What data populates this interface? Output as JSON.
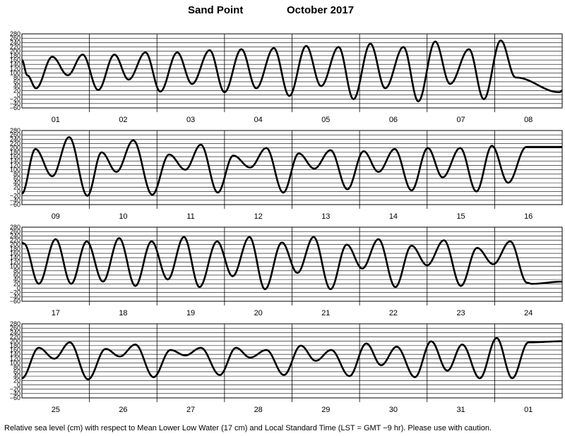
{
  "title": {
    "station": "Sand Point",
    "month_year": "October   2017"
  },
  "footer": "Relative sea level (cm) with respect to Mean Lower Low Water (17 cm) and Local Standard Time (LST = GMT −9 hr). Please use with caution.",
  "chart_data": {
    "type": "line",
    "ylim": [
      -60,
      280
    ],
    "y_ticks": [
      -60,
      -40,
      -20,
      0,
      20,
      40,
      60,
      80,
      100,
      120,
      140,
      160,
      180,
      200,
      220,
      240,
      260,
      280
    ],
    "y_tick_labels": [
      "−60",
      "−40",
      "−20",
      "0",
      "20",
      "40",
      "60",
      "80",
      "100",
      "120",
      "140",
      "160",
      "180",
      "200",
      "220",
      "240",
      "260",
      "280"
    ],
    "grid": true,
    "ylabel": "Relative sea level (cm)",
    "panels": [
      {
        "days": [
          "01",
          "02",
          "03",
          "04",
          "05",
          "06",
          "07",
          "08"
        ],
        "points": [
          [
            0.0,
            160
          ],
          [
            0.08,
            90
          ],
          [
            0.21,
            30
          ],
          [
            0.45,
            175
          ],
          [
            0.68,
            90
          ],
          [
            0.9,
            185
          ],
          [
            1.13,
            22
          ],
          [
            1.37,
            185
          ],
          [
            1.58,
            70
          ],
          [
            1.83,
            195
          ],
          [
            2.05,
            15
          ],
          [
            2.3,
            195
          ],
          [
            2.52,
            50
          ],
          [
            2.78,
            205
          ],
          [
            3.0,
            12
          ],
          [
            3.25,
            210
          ],
          [
            3.47,
            30
          ],
          [
            3.73,
            215
          ],
          [
            3.96,
            -5
          ],
          [
            4.21,
            225
          ],
          [
            4.43,
            40
          ],
          [
            4.69,
            220
          ],
          [
            4.91,
            -20
          ],
          [
            5.16,
            235
          ],
          [
            5.38,
            30
          ],
          [
            5.65,
            220
          ],
          [
            5.87,
            -30
          ],
          [
            6.12,
            245
          ],
          [
            6.34,
            50
          ],
          [
            6.62,
            210
          ],
          [
            6.84,
            -20
          ],
          [
            7.09,
            250
          ],
          [
            7.31,
            80
          ],
          [
            7.96,
            12
          ],
          [
            8.0,
            20
          ]
        ]
      },
      {
        "days": [
          "09",
          "10",
          "11",
          "12",
          "13",
          "14",
          "15",
          "16"
        ],
        "points": [
          [
            0.0,
            -10
          ],
          [
            0.2,
            195
          ],
          [
            0.45,
            70
          ],
          [
            0.7,
            250
          ],
          [
            0.97,
            -20
          ],
          [
            1.18,
            180
          ],
          [
            1.4,
            90
          ],
          [
            1.65,
            235
          ],
          [
            1.93,
            -15
          ],
          [
            2.18,
            170
          ],
          [
            2.42,
            100
          ],
          [
            2.65,
            215
          ],
          [
            2.9,
            -5
          ],
          [
            3.13,
            165
          ],
          [
            3.38,
            110
          ],
          [
            3.62,
            200
          ],
          [
            3.87,
            -5
          ],
          [
            4.1,
            175
          ],
          [
            4.33,
            105
          ],
          [
            4.57,
            190
          ],
          [
            4.82,
            10
          ],
          [
            5.06,
            185
          ],
          [
            5.28,
            90
          ],
          [
            5.52,
            195
          ],
          [
            5.77,
            5
          ],
          [
            6.01,
            200
          ],
          [
            6.23,
            65
          ],
          [
            6.49,
            200
          ],
          [
            6.73,
            0
          ],
          [
            6.96,
            210
          ],
          [
            7.2,
            40
          ],
          [
            7.47,
            205
          ],
          [
            8.0,
            205
          ]
        ]
      },
      {
        "days": [
          "17",
          "18",
          "19",
          "20",
          "21",
          "22",
          "23",
          "24"
        ],
        "points": [
          [
            0.0,
            210
          ],
          [
            0.03,
            205
          ],
          [
            0.25,
            20
          ],
          [
            0.5,
            225
          ],
          [
            0.73,
            20
          ],
          [
            0.96,
            215
          ],
          [
            1.2,
            30
          ],
          [
            1.44,
            230
          ],
          [
            1.68,
            10
          ],
          [
            1.92,
            215
          ],
          [
            2.16,
            40
          ],
          [
            2.4,
            235
          ],
          [
            2.63,
            5
          ],
          [
            2.89,
            215
          ],
          [
            3.12,
            55
          ],
          [
            3.37,
            235
          ],
          [
            3.6,
            -5
          ],
          [
            3.85,
            210
          ],
          [
            4.08,
            70
          ],
          [
            4.32,
            235
          ],
          [
            4.57,
            -5
          ],
          [
            4.81,
            200
          ],
          [
            5.04,
            90
          ],
          [
            5.28,
            225
          ],
          [
            5.53,
            5
          ],
          [
            5.77,
            195
          ],
          [
            6.0,
            105
          ],
          [
            6.25,
            220
          ],
          [
            6.5,
            10
          ],
          [
            6.74,
            185
          ],
          [
            6.98,
            110
          ],
          [
            7.23,
            215
          ],
          [
            7.48,
            25
          ],
          [
            7.55,
            20
          ],
          [
            8.0,
            30
          ]
        ]
      },
      {
        "days": [
          "25",
          "26",
          "27",
          "28",
          "29",
          "30",
          "31",
          "01"
        ],
        "points": [
          [
            0.0,
            30
          ],
          [
            0.25,
            170
          ],
          [
            0.48,
            120
          ],
          [
            0.71,
            195
          ],
          [
            0.98,
            25
          ],
          [
            1.24,
            165
          ],
          [
            1.45,
            130
          ],
          [
            1.68,
            185
          ],
          [
            1.95,
            35
          ],
          [
            2.2,
            160
          ],
          [
            2.42,
            135
          ],
          [
            2.65,
            170
          ],
          [
            2.93,
            45
          ],
          [
            3.17,
            170
          ],
          [
            3.38,
            125
          ],
          [
            3.62,
            160
          ],
          [
            3.88,
            45
          ],
          [
            4.13,
            180
          ],
          [
            4.35,
            110
          ],
          [
            4.58,
            160
          ],
          [
            4.85,
            40
          ],
          [
            5.1,
            190
          ],
          [
            5.32,
            90
          ],
          [
            5.55,
            175
          ],
          [
            5.82,
            35
          ],
          [
            6.06,
            200
          ],
          [
            6.3,
            65
          ],
          [
            6.52,
            185
          ],
          [
            6.78,
            30
          ],
          [
            7.03,
            215
          ],
          [
            7.26,
            30
          ],
          [
            7.5,
            195
          ],
          [
            8.0,
            200
          ]
        ]
      }
    ]
  }
}
